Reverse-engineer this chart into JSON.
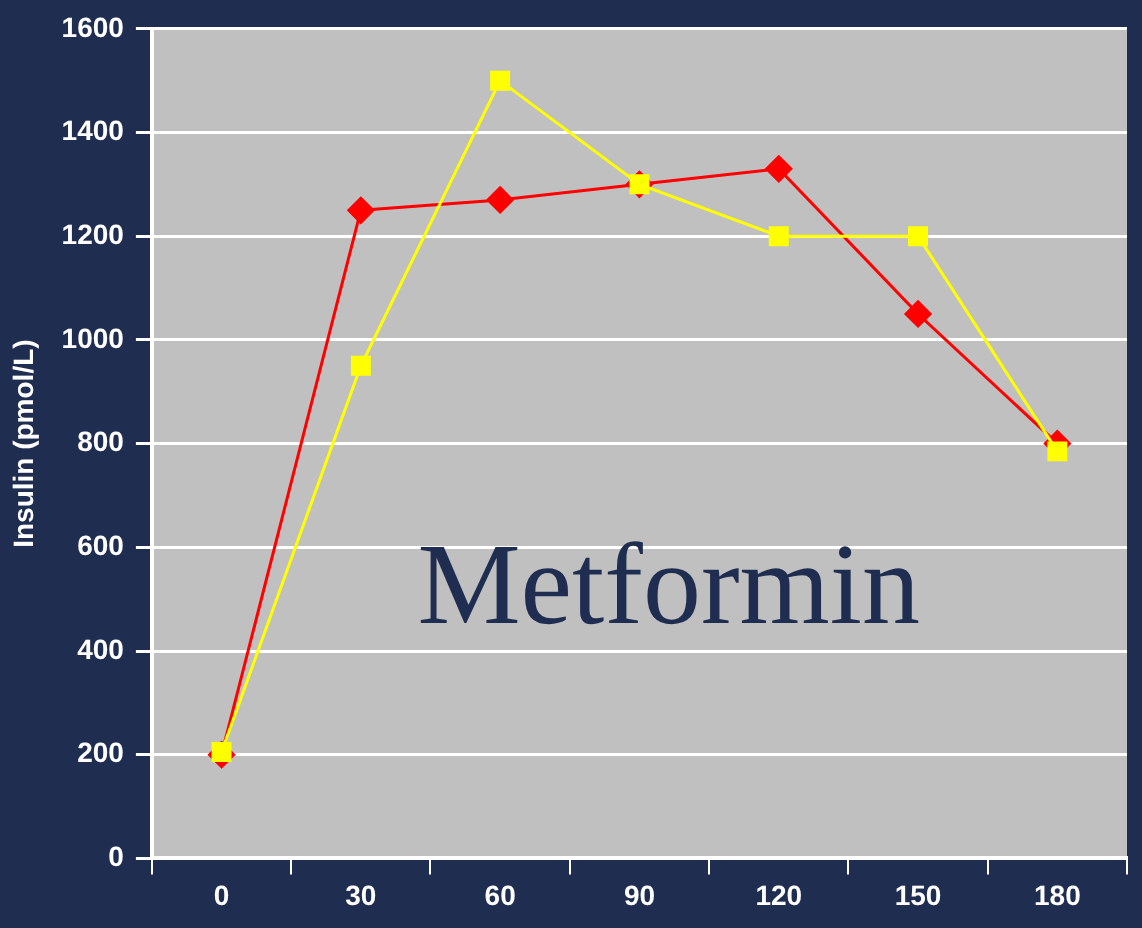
{
  "chart_data": {
    "type": "line",
    "ylabel": "Insulin (pmol/L)",
    "categories": [
      "0",
      "30",
      "60",
      "90",
      "120",
      "150",
      "180"
    ],
    "series": [
      {
        "color": "#ff0000",
        "marker": "diamond",
        "values": [
          200,
          1250,
          1270,
          1300,
          1330,
          1050,
          800
        ]
      },
      {
        "color": "#ffff00",
        "marker": "square",
        "values": [
          205,
          950,
          1500,
          1300,
          1200,
          1200,
          785
        ]
      }
    ],
    "ylim": [
      0,
      1600
    ],
    "yticks": [
      0,
      200,
      400,
      600,
      800,
      1000,
      1200,
      1400,
      1600
    ],
    "grid": "y",
    "legend": false,
    "line_style": "solid",
    "annotations": [
      "Metformin"
    ]
  }
}
